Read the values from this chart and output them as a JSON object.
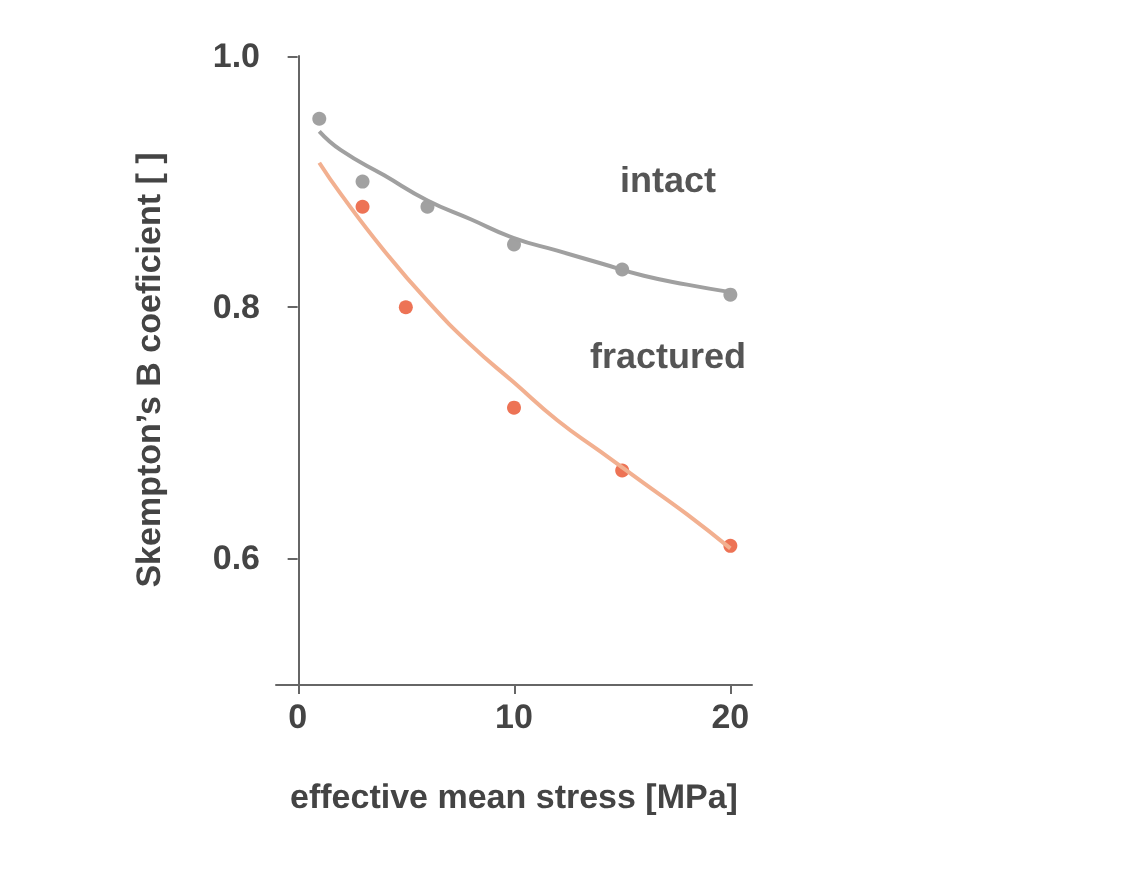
{
  "chart_data": {
    "type": "scatter",
    "xlabel": "effective mean stress [MPa]",
    "ylabel": "Skempton’s B coeficient [ ]",
    "xlim": [
      -1,
      21
    ],
    "xticks": [
      0,
      10,
      20
    ],
    "ylim": [
      0.5,
      1.0
    ],
    "yticks": [
      {
        "value": 0.6,
        "label": "0.6"
      },
      {
        "value": 0.8,
        "label": "0.8"
      },
      {
        "value": 1.0,
        "label": "1.0"
      }
    ],
    "grid": false,
    "marker": "circle",
    "series": [
      {
        "type": "line",
        "marker": "none",
        "color": "#a0a0a0",
        "x": [
          1,
          2,
          4,
          6,
          8,
          10,
          12,
          14,
          16,
          18,
          20
        ],
        "values": [
          0.94,
          0.925,
          0.905,
          0.885,
          0.87,
          0.855,
          0.845,
          0.835,
          0.825,
          0.818,
          0.812
        ]
      },
      {
        "type": "line",
        "marker": "none",
        "color": "#f2b090",
        "x": [
          1,
          2,
          4,
          6,
          8,
          10,
          12,
          14,
          16,
          18,
          20
        ],
        "values": [
          0.915,
          0.89,
          0.845,
          0.805,
          0.77,
          0.74,
          0.71,
          0.685,
          0.66,
          0.635,
          0.608
        ]
      },
      {
        "color": "#8a8a8a",
        "x": [
          1,
          3,
          6,
          10,
          15,
          20
        ],
        "values": [
          0.95,
          0.9,
          0.88,
          0.85,
          0.83,
          0.81
        ]
      },
      {
        "color": "#e8502a",
        "x": [
          3,
          5,
          10,
          15,
          20
        ],
        "values": [
          0.88,
          0.8,
          0.72,
          0.67,
          0.61
        ]
      }
    ],
    "annotations": [
      "intact",
      "fractured"
    ]
  }
}
